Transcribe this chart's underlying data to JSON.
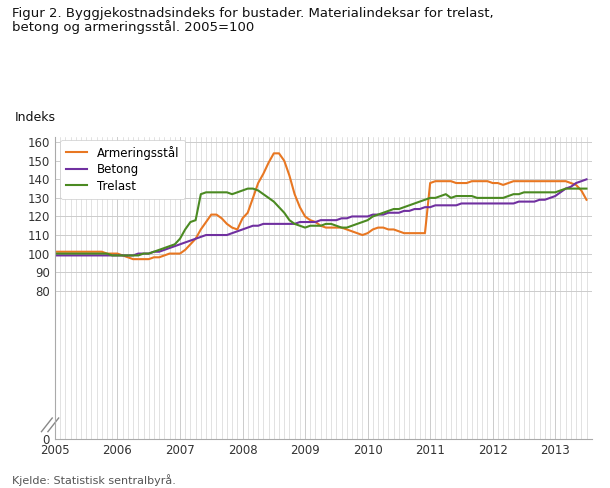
{
  "title_line1": "Figur 2. Byggjekostnadsindeks for bustader. Materialindeksar for trelast,",
  "title_line2": "betong og armeringsstål. 2005=100",
  "ylabel": "Indeks",
  "source": "Kjelde: Statistisk sentralbyrå.",
  "bg": "#ffffff",
  "grid_color": "#cccccc",
  "armeringsstaal_color": "#E87722",
  "betong_color": "#7030A0",
  "trelast_color": "#4B8A22",
  "armeringsstaal_x": [
    2005.0,
    2005.083,
    2005.167,
    2005.25,
    2005.333,
    2005.417,
    2005.5,
    2005.583,
    2005.667,
    2005.75,
    2005.833,
    2005.917,
    2006.0,
    2006.083,
    2006.167,
    2006.25,
    2006.333,
    2006.417,
    2006.5,
    2006.583,
    2006.667,
    2006.75,
    2006.833,
    2006.917,
    2007.0,
    2007.083,
    2007.167,
    2007.25,
    2007.333,
    2007.417,
    2007.5,
    2007.583,
    2007.667,
    2007.75,
    2007.833,
    2007.917,
    2008.0,
    2008.083,
    2008.167,
    2008.25,
    2008.333,
    2008.417,
    2008.5,
    2008.583,
    2008.667,
    2008.75,
    2008.833,
    2008.917,
    2009.0,
    2009.083,
    2009.167,
    2009.25,
    2009.333,
    2009.417,
    2009.5,
    2009.583,
    2009.667,
    2009.75,
    2009.833,
    2009.917,
    2010.0,
    2010.083,
    2010.167,
    2010.25,
    2010.333,
    2010.417,
    2010.5,
    2010.583,
    2010.667,
    2010.75,
    2010.833,
    2010.917,
    2011.0,
    2011.083,
    2011.167,
    2011.25,
    2011.333,
    2011.417,
    2011.5,
    2011.583,
    2011.667,
    2011.75,
    2011.833,
    2011.917,
    2012.0,
    2012.083,
    2012.167,
    2012.25,
    2012.333,
    2012.417,
    2012.5,
    2012.583,
    2012.667,
    2012.75,
    2012.833,
    2012.917,
    2013.0,
    2013.083,
    2013.167,
    2013.25,
    2013.333,
    2013.417,
    2013.5
  ],
  "armeringsstaal_y": [
    101,
    101,
    101,
    101,
    101,
    101,
    101,
    101,
    101,
    101,
    100,
    100,
    100,
    99,
    98,
    97,
    97,
    97,
    97,
    98,
    98,
    99,
    100,
    100,
    100,
    102,
    105,
    108,
    113,
    117,
    121,
    121,
    119,
    116,
    114,
    113,
    119,
    122,
    130,
    138,
    143,
    149,
    154,
    154,
    150,
    142,
    132,
    125,
    120,
    118,
    117,
    115,
    114,
    114,
    114,
    114,
    113,
    112,
    111,
    110,
    111,
    113,
    114,
    114,
    113,
    113,
    112,
    111,
    111,
    111,
    111,
    111,
    138,
    139,
    139,
    139,
    139,
    138,
    138,
    138,
    139,
    139,
    139,
    139,
    138,
    138,
    137,
    138,
    139,
    139,
    139,
    139,
    139,
    139,
    139,
    139,
    139,
    139,
    139,
    138,
    137,
    134,
    129
  ],
  "betong_x": [
    2005.0,
    2005.083,
    2005.167,
    2005.25,
    2005.333,
    2005.417,
    2005.5,
    2005.583,
    2005.667,
    2005.75,
    2005.833,
    2005.917,
    2006.0,
    2006.083,
    2006.167,
    2006.25,
    2006.333,
    2006.417,
    2006.5,
    2006.583,
    2006.667,
    2006.75,
    2006.833,
    2006.917,
    2007.0,
    2007.083,
    2007.167,
    2007.25,
    2007.333,
    2007.417,
    2007.5,
    2007.583,
    2007.667,
    2007.75,
    2007.833,
    2007.917,
    2008.0,
    2008.083,
    2008.167,
    2008.25,
    2008.333,
    2008.417,
    2008.5,
    2008.583,
    2008.667,
    2008.75,
    2008.833,
    2008.917,
    2009.0,
    2009.083,
    2009.167,
    2009.25,
    2009.333,
    2009.417,
    2009.5,
    2009.583,
    2009.667,
    2009.75,
    2009.833,
    2009.917,
    2010.0,
    2010.083,
    2010.167,
    2010.25,
    2010.333,
    2010.417,
    2010.5,
    2010.583,
    2010.667,
    2010.75,
    2010.833,
    2010.917,
    2011.0,
    2011.083,
    2011.167,
    2011.25,
    2011.333,
    2011.417,
    2011.5,
    2011.583,
    2011.667,
    2011.75,
    2011.833,
    2011.917,
    2012.0,
    2012.083,
    2012.167,
    2012.25,
    2012.333,
    2012.417,
    2012.5,
    2012.583,
    2012.667,
    2012.75,
    2012.833,
    2012.917,
    2013.0,
    2013.083,
    2013.167,
    2013.25,
    2013.333,
    2013.417,
    2013.5
  ],
  "betong_y": [
    99,
    99,
    99,
    99,
    99,
    99,
    99,
    99,
    99,
    99,
    99,
    99,
    99,
    99,
    99,
    99,
    100,
    100,
    100,
    101,
    101,
    102,
    103,
    104,
    105,
    106,
    107,
    108,
    109,
    110,
    110,
    110,
    110,
    110,
    111,
    112,
    113,
    114,
    115,
    115,
    116,
    116,
    116,
    116,
    116,
    116,
    116,
    117,
    117,
    117,
    117,
    118,
    118,
    118,
    118,
    119,
    119,
    120,
    120,
    120,
    120,
    121,
    121,
    121,
    122,
    122,
    122,
    123,
    123,
    124,
    124,
    125,
    125,
    126,
    126,
    126,
    126,
    126,
    127,
    127,
    127,
    127,
    127,
    127,
    127,
    127,
    127,
    127,
    127,
    128,
    128,
    128,
    128,
    129,
    129,
    130,
    131,
    133,
    135,
    136,
    138,
    139,
    140
  ],
  "trelast_x": [
    2005.0,
    2005.083,
    2005.167,
    2005.25,
    2005.333,
    2005.417,
    2005.5,
    2005.583,
    2005.667,
    2005.75,
    2005.833,
    2005.917,
    2006.0,
    2006.083,
    2006.167,
    2006.25,
    2006.333,
    2006.417,
    2006.5,
    2006.583,
    2006.667,
    2006.75,
    2006.833,
    2006.917,
    2007.0,
    2007.083,
    2007.167,
    2007.25,
    2007.333,
    2007.417,
    2007.5,
    2007.583,
    2007.667,
    2007.75,
    2007.833,
    2007.917,
    2008.0,
    2008.083,
    2008.167,
    2008.25,
    2008.333,
    2008.417,
    2008.5,
    2008.583,
    2008.667,
    2008.75,
    2008.833,
    2008.917,
    2009.0,
    2009.083,
    2009.167,
    2009.25,
    2009.333,
    2009.417,
    2009.5,
    2009.583,
    2009.667,
    2009.75,
    2009.833,
    2009.917,
    2010.0,
    2010.083,
    2010.167,
    2010.25,
    2010.333,
    2010.417,
    2010.5,
    2010.583,
    2010.667,
    2010.75,
    2010.833,
    2010.917,
    2011.0,
    2011.083,
    2011.167,
    2011.25,
    2011.333,
    2011.417,
    2011.5,
    2011.583,
    2011.667,
    2011.75,
    2011.833,
    2011.917,
    2012.0,
    2012.083,
    2012.167,
    2012.25,
    2012.333,
    2012.417,
    2012.5,
    2012.583,
    2012.667,
    2012.75,
    2012.833,
    2012.917,
    2013.0,
    2013.083,
    2013.167,
    2013.25,
    2013.333,
    2013.417,
    2013.5
  ],
  "trelast_y": [
    100,
    100,
    100,
    100,
    100,
    100,
    100,
    100,
    100,
    100,
    100,
    99,
    99,
    99,
    99,
    99,
    99,
    100,
    100,
    101,
    102,
    103,
    104,
    105,
    108,
    113,
    117,
    118,
    132,
    133,
    133,
    133,
    133,
    133,
    132,
    133,
    134,
    135,
    135,
    134,
    132,
    130,
    128,
    125,
    122,
    118,
    116,
    115,
    114,
    115,
    115,
    115,
    116,
    116,
    115,
    114,
    114,
    115,
    116,
    117,
    118,
    120,
    121,
    122,
    123,
    124,
    124,
    125,
    126,
    127,
    128,
    129,
    130,
    130,
    131,
    132,
    130,
    131,
    131,
    131,
    131,
    130,
    130,
    130,
    130,
    130,
    130,
    131,
    132,
    132,
    133,
    133,
    133,
    133,
    133,
    133,
    133,
    134,
    135,
    135,
    135,
    135,
    135
  ]
}
